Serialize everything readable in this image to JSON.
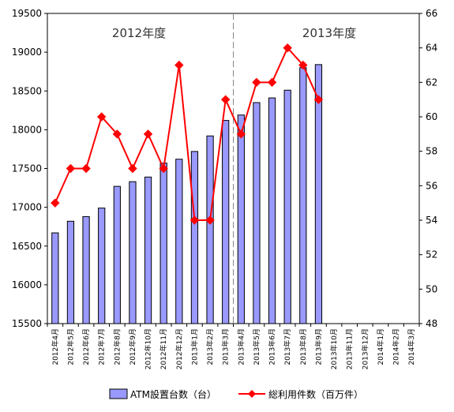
{
  "chart_data": {
    "type": "bar+line",
    "categories": [
      "2012年4月",
      "2012年5月",
      "2012年6月",
      "2012年7月",
      "2012年8月",
      "2012年9月",
      "2012年10月",
      "2012年11月",
      "2012年12月",
      "2013年1月",
      "2013年2月",
      "2013年3月",
      "2013年4月",
      "2013年5月",
      "2013年6月",
      "2013年7月",
      "2013年8月",
      "2013年9月",
      "2013年10月",
      "2013年11月",
      "2013年12月",
      "2014年1月",
      "2014年2月",
      "2014年3月"
    ],
    "series": [
      {
        "name": "ATM設置台数（台）",
        "type": "bar",
        "axis": "left",
        "color": "#9999ff",
        "values": [
          16670,
          16820,
          16880,
          16990,
          17270,
          17330,
          17390,
          17570,
          17620,
          17720,
          17920,
          18120,
          18190,
          18350,
          18410,
          18510,
          18800,
          18840,
          null,
          null,
          null,
          null,
          null,
          null
        ]
      },
      {
        "name": "総利用件数（百万件）",
        "type": "line",
        "axis": "right",
        "color": "#ff0000",
        "values": [
          55,
          57,
          57,
          60,
          59,
          57,
          59,
          57,
          63,
          54,
          54,
          61,
          59,
          62,
          62,
          64,
          63,
          61,
          null,
          null,
          null,
          null,
          null,
          null
        ]
      }
    ],
    "y_left": {
      "min": 15500,
      "max": 19500,
      "step": 500,
      "ticks": [
        "15500",
        "16000",
        "16500",
        "17000",
        "17500",
        "18000",
        "18500",
        "19000",
        "19500"
      ]
    },
    "y_right": {
      "min": 48,
      "max": 66,
      "step": 2,
      "ticks": [
        "48",
        "50",
        "52",
        "54",
        "56",
        "58",
        "60",
        "62",
        "64",
        "66"
      ]
    },
    "annotations": [
      "2012年度",
      "2013年度"
    ],
    "divider_after_index": 11,
    "grid": false,
    "legend_position": "bottom"
  }
}
